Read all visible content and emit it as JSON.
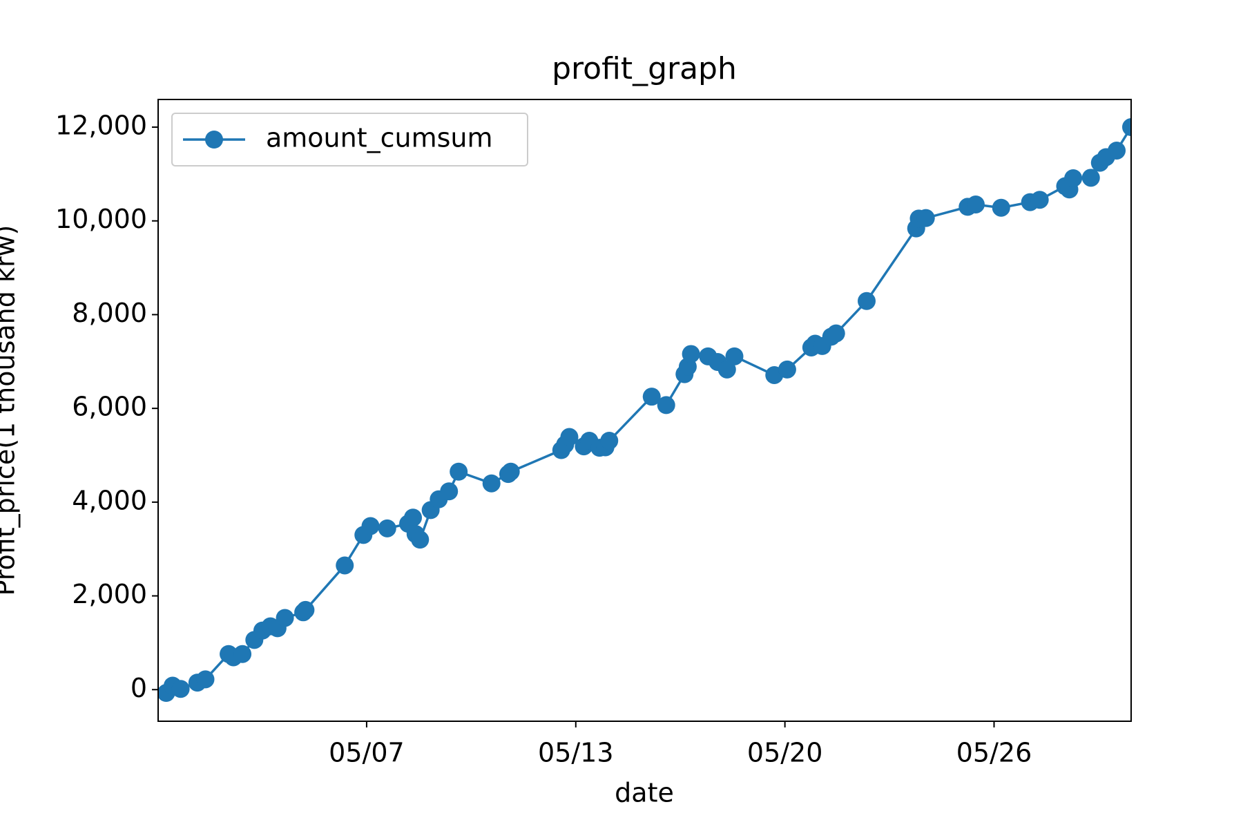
{
  "chart_data": {
    "type": "line",
    "title": "profit_graph",
    "x_label": "date",
    "y_label": "Profit_price(1 thousand krw)",
    "x": [
      0.77,
      0.97,
      1.22,
      1.74,
      1.99,
      2.71,
      2.86,
      3.14,
      3.51,
      3.76,
      4.01,
      4.23,
      4.46,
      5.03,
      5.1,
      6.32,
      6.9,
      7.12,
      7.64,
      8.29,
      8.44,
      8.52,
      8.66,
      8.99,
      9.24,
      9.56,
      9.86,
      10.88,
      11.4,
      11.48,
      13.05,
      13.17,
      13.3,
      13.75,
      13.92,
      14.24,
      14.42,
      14.54,
      15.86,
      16.31,
      16.88,
      16.98,
      17.08,
      17.61,
      17.91,
      18.2,
      18.43,
      19.67,
      20.07,
      20.82,
      20.94,
      21.16,
      21.44,
      21.59,
      22.54,
      24.08,
      24.16,
      24.38,
      25.68,
      25.93,
      26.72,
      27.62,
      27.92,
      28.71,
      28.84,
      28.96,
      29.51,
      29.79,
      29.98,
      30.31,
      30.76
    ],
    "series": [
      {
        "name": "amount_cumsum",
        "color": "#1f77b4",
        "values": [
          -70,
          85,
          15,
          150,
          220,
          760,
          690,
          760,
          1060,
          1260,
          1350,
          1310,
          1530,
          1650,
          1700,
          2650,
          3300,
          3490,
          3440,
          3540,
          3670,
          3320,
          3200,
          3830,
          4060,
          4230,
          4650,
          4400,
          4600,
          4650,
          5110,
          5230,
          5390,
          5190,
          5310,
          5160,
          5170,
          5310,
          6250,
          6070,
          6730,
          6890,
          7160,
          7110,
          6990,
          6830,
          7110,
          6710,
          6830,
          7300,
          7380,
          7330,
          7530,
          7600,
          8290,
          9840,
          10050,
          10060,
          10300,
          10350,
          10280,
          10400,
          10450,
          10740,
          10670,
          10910,
          10920,
          11240,
          11360,
          11500,
          12000
        ]
      }
    ],
    "xlim": [
      0.52,
      30.76
    ],
    "xticks": [
      {
        "value": 7,
        "label": "05/07"
      },
      {
        "value": 13.5,
        "label": "05/13"
      },
      {
        "value": 20,
        "label": "05/20"
      },
      {
        "value": 26.5,
        "label": "05/26"
      }
    ],
    "ylim": [
      -674,
      12590
    ],
    "yticks": [
      0,
      {
        "value": 2000,
        "label": "2,000"
      },
      {
        "value": 4000,
        "label": "4,000"
      },
      {
        "value": 6000,
        "label": "6,000"
      },
      {
        "value": 8000,
        "label": "8,000"
      },
      {
        "value": 10000,
        "label": "10,000"
      },
      {
        "value": 12000,
        "label": "12,000"
      }
    ],
    "legend": "upper left",
    "grid": false
  }
}
